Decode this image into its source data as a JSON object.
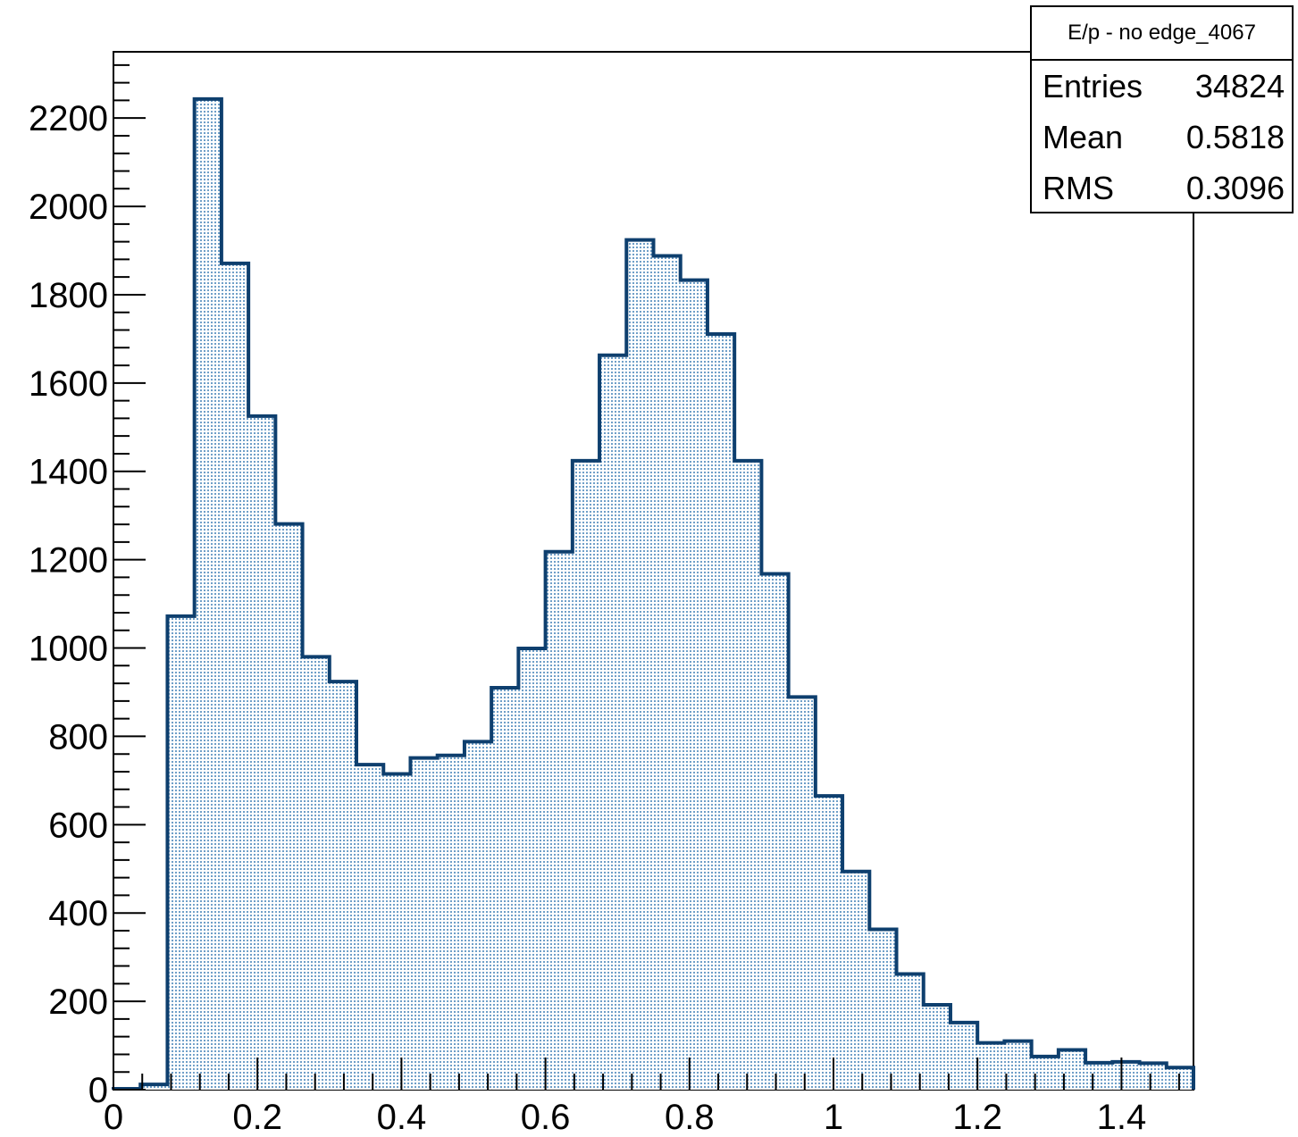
{
  "chart_data": {
    "type": "bar",
    "histogram": true,
    "title": "",
    "xlabel": "",
    "ylabel": "",
    "xlim": [
      0,
      1.5
    ],
    "ylim": [
      0,
      2350
    ],
    "bin_edges": [
      0.0,
      0.0375,
      0.075,
      0.1125,
      0.15,
      0.1875,
      0.225,
      0.2625,
      0.3,
      0.3375,
      0.375,
      0.4125,
      0.45,
      0.4875,
      0.525,
      0.5625,
      0.6,
      0.6375,
      0.675,
      0.7125,
      0.75,
      0.7875,
      0.825,
      0.8625,
      0.9,
      0.9375,
      0.975,
      1.0125,
      1.05,
      1.0875,
      1.125,
      1.1625,
      1.2,
      1.2375,
      1.275,
      1.3125,
      1.35,
      1.3875,
      1.425,
      1.4625,
      1.5
    ],
    "values": [
      2,
      12,
      1072,
      2243,
      1871,
      1525,
      1281,
      980,
      924,
      736,
      715,
      751,
      757,
      788,
      910,
      999,
      1218,
      1424,
      1663,
      1924,
      1888,
      1833,
      1711,
      1424,
      1168,
      889,
      665,
      494,
      363,
      262,
      192,
      152,
      106,
      110,
      75,
      90,
      61,
      63,
      60,
      50
    ],
    "x_ticks": [
      "0",
      "0.2",
      "0.4",
      "0.6",
      "0.8",
      "1",
      "1.2",
      "1.4"
    ],
    "x_tick_values": [
      0,
      0.2,
      0.4,
      0.6,
      0.8,
      1.0,
      1.2,
      1.4
    ],
    "y_ticks": [
      "0",
      "200",
      "400",
      "600",
      "800",
      "1000",
      "1200",
      "1400",
      "1600",
      "1800",
      "2000",
      "2200"
    ],
    "y_tick_values": [
      0,
      200,
      400,
      600,
      800,
      1000,
      1200,
      1400,
      1600,
      1800,
      2000,
      2200
    ],
    "grid": false,
    "legend": "none",
    "fill_color": "#c6ddef",
    "line_color": "#0e3f6e"
  },
  "stats": {
    "title": "E/p - no edge_4067",
    "rows": [
      {
        "label": "Entries",
        "value": "34824"
      },
      {
        "label": "Mean",
        "value": "0.5818"
      },
      {
        "label": "RMS",
        "value": "0.3096"
      }
    ]
  }
}
